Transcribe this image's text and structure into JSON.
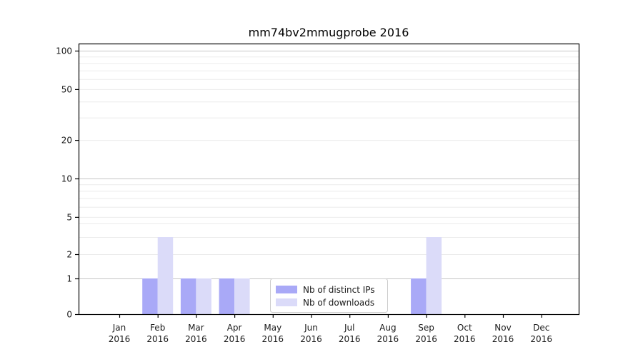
{
  "title": "mm74bv2mmugprobe 2016",
  "colors": {
    "distinct_ips_bar": "#a9a9f7",
    "downloads_bar": "#dbdbf9",
    "major_gridline": "#c6c6c6",
    "minor_gridline": "#ebebeb",
    "spine": "#000000",
    "legend_border": "#cccccc",
    "legend_background": "#ffffff"
  },
  "chart_data": {
    "type": "bar",
    "title": "mm74bv2mmugprobe 2016",
    "categories": [
      "Jan",
      "Feb",
      "Mar",
      "Apr",
      "May",
      "Jun",
      "Jul",
      "Aug",
      "Sep",
      "Oct",
      "Nov",
      "Dec"
    ],
    "category_sub_label": "2016",
    "series": [
      {
        "name": "Nb of distinct IPs",
        "color": "#a9a9f7",
        "values": [
          0,
          1,
          1,
          1,
          0,
          0,
          0,
          0,
          1,
          0,
          0,
          0
        ]
      },
      {
        "name": "Nb of downloads",
        "color": "#dbdbf9",
        "values": [
          0,
          3,
          1,
          1,
          0,
          0,
          0,
          0,
          3,
          0,
          0,
          0
        ]
      }
    ],
    "xlabel": "",
    "ylabel": "",
    "yscale": "symlog",
    "ylim": [
      0,
      115
    ],
    "yticks": [
      100,
      50,
      20,
      10,
      5,
      2,
      1,
      0
    ],
    "major_grid_values": [
      1,
      10,
      100
    ],
    "minor_grid_values": [
      2,
      3,
      4,
      5,
      6,
      7,
      8,
      9,
      20,
      30,
      40,
      50,
      60,
      70,
      80,
      90
    ],
    "grid": "on",
    "legend_position": "lower center inside axes"
  }
}
